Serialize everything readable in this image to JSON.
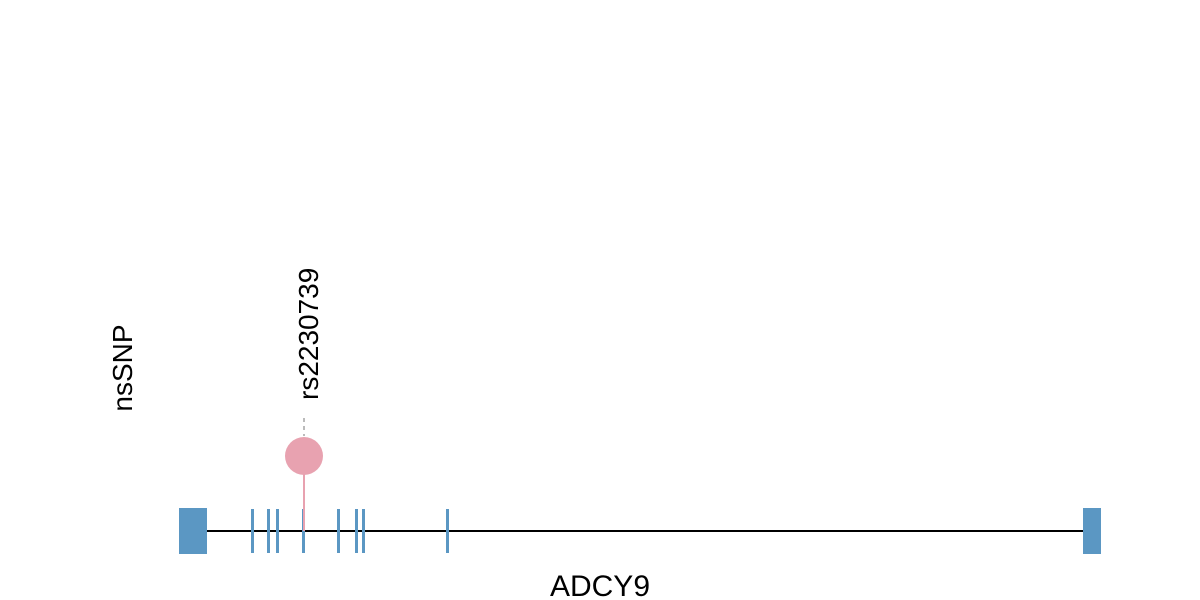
{
  "track_label": "nsSNP",
  "gene_name": "ADCY9",
  "colors": {
    "exon": "#5b97c3",
    "intron_line": "#000000",
    "snp_marker": "#e8a2b0",
    "snp_stem": "#e8a2b0",
    "leader_dash": "#bbbbbb"
  },
  "exons": [
    {
      "kind": "block"
    },
    {
      "kind": "tick"
    },
    {
      "kind": "tick"
    },
    {
      "kind": "tick"
    },
    {
      "kind": "tick"
    },
    {
      "kind": "tick"
    },
    {
      "kind": "tick"
    },
    {
      "kind": "tick"
    },
    {
      "kind": "tick"
    },
    {
      "kind": "block"
    }
  ],
  "snps": [
    {
      "id": "rs2230739"
    }
  ]
}
